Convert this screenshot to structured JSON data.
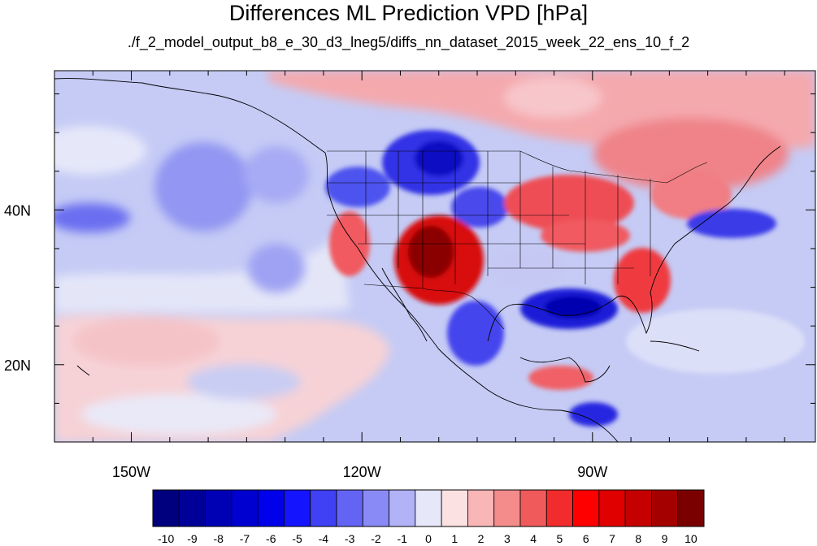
{
  "title": "Differences ML Prediction VPD [hPa]",
  "subtitle": "./f_2_model_output_b8_e_30_d3_lneg5/diffs_nn_dataset_2015_week_22_ens_10_f_2",
  "map": {
    "projection": "cylindrical-equidistant",
    "lon_range": [
      -160,
      -61
    ],
    "lat_range": [
      10,
      58
    ],
    "x_tick_labels": [
      {
        "lon": -150,
        "label": "150W"
      },
      {
        "lon": -120,
        "label": "120W"
      },
      {
        "lon": -90,
        "label": "90W"
      }
    ],
    "y_tick_labels": [
      {
        "lat": 40,
        "label": "40N"
      },
      {
        "lat": 20,
        "label": "20N"
      }
    ],
    "minor_lon_ticks": [
      -160,
      -155,
      -150,
      -145,
      -140,
      -135,
      -130,
      -125,
      -120,
      -115,
      -110,
      -105,
      -100,
      -95,
      -90,
      -85,
      -80,
      -75,
      -70,
      -65
    ],
    "minor_lat_ticks": [
      10,
      15,
      20,
      25,
      30,
      35,
      40,
      45,
      50,
      55
    ],
    "ocean_color": "#c5cbf5",
    "features": "filled contour field of VPD differences with coastlines and state/country borders"
  },
  "colorbar": {
    "labels": [
      "-10",
      "-9",
      "-8",
      "-7",
      "-6",
      "-5",
      "-4",
      "-3",
      "-2",
      "-1",
      "0",
      "1",
      "2",
      "3",
      "4",
      "5",
      "6",
      "7",
      "8",
      "9",
      "10"
    ],
    "colors": [
      "#00007f",
      "#000099",
      "#0000b4",
      "#0000d0",
      "#0000ea",
      "#1414ff",
      "#4040f4",
      "#6464f4",
      "#8a8af6",
      "#b2b2f7",
      "#e6e8f9",
      "#fbe1e1",
      "#f8b6b6",
      "#f58c8c",
      "#f05a5a",
      "#f22c2c",
      "#ff0000",
      "#e00000",
      "#c40000",
      "#a50000",
      "#7a0000"
    ]
  }
}
